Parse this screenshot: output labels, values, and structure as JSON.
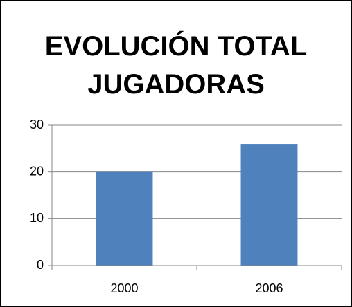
{
  "chart_data": {
    "type": "bar",
    "title": "EVOLUCIÓN TOTAL JUGADORAS",
    "categories": [
      "2000",
      "2006"
    ],
    "values": [
      20,
      26
    ],
    "color": "#4f81bd",
    "ylim": [
      0,
      30
    ],
    "yticks": [
      0,
      10,
      20,
      30
    ],
    "grid": true
  }
}
